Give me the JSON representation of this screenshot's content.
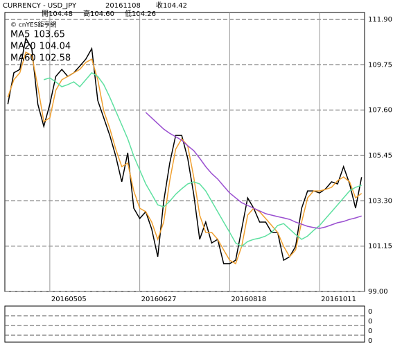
{
  "header": {
    "line1": [
      "CURRENCY - USD_JPY",
      "20161108",
      "收104.42"
    ],
    "line2": [
      "開104.48",
      "高104.60",
      "低104.26"
    ],
    "source": "© cnYES鉅亨網"
  },
  "chart_data": {
    "type": "line",
    "categories": [
      null,
      null,
      null,
      null,
      null,
      null,
      null,
      "20160505",
      null,
      null,
      null,
      null,
      null,
      null,
      null,
      null,
      null,
      null,
      null,
      null,
      null,
      null,
      "20160627",
      null,
      null,
      null,
      null,
      null,
      null,
      null,
      null,
      null,
      null,
      null,
      null,
      null,
      null,
      "20160818",
      null,
      null,
      null,
      null,
      null,
      null,
      null,
      null,
      null,
      null,
      null,
      null,
      null,
      null,
      "20161011",
      null,
      null,
      null,
      null,
      null,
      null,
      null
    ],
    "ylim": [
      99,
      112.23
    ],
    "yticks": [
      {
        "value": 99,
        "label": "99.00"
      },
      101.15,
      {
        "value": 103.3,
        "label": "103.30"
      },
      105.45,
      {
        "value": 107.6,
        "label": "107.60"
      },
      109.75,
      {
        "value": 111.9,
        "label": "111.90"
      }
    ],
    "grid": true,
    "series": [
      {
        "color": "#000000",
        "values": [
          107.88,
          109.37,
          109.53,
          111.01,
          110.52,
          107.88,
          106.83,
          107.88,
          109.2,
          109.53,
          109.2,
          109.37,
          109.69,
          110.02,
          110.52,
          108.05,
          107.23,
          106.4,
          105.42,
          104.2,
          105.58,
          102.95,
          102.46,
          102.78,
          101.96,
          100.65,
          103.28,
          105.09,
          106.4,
          106.4,
          105.32,
          103.61,
          101.47,
          102.29,
          101.3,
          101.47,
          100.32,
          100.32,
          100.48,
          101.96,
          103.44,
          102.95,
          102.29,
          102.29,
          101.8,
          101.8,
          100.48,
          100.65,
          101.14,
          102.95,
          103.77,
          103.77,
          103.67,
          103.87,
          104.2,
          104.1,
          104.92,
          104.1,
          102.95,
          104.42
        ]
      },
      {
        "name": "MA5",
        "last": 103.65,
        "color": "#f0a030",
        "values": [
          108.21,
          109.04,
          109.37,
          110.35,
          110.19,
          108.71,
          107.06,
          107.23,
          108.54,
          109.04,
          109.2,
          109.37,
          109.53,
          109.86,
          110.02,
          109.04,
          107.56,
          106.73,
          105.75,
          104.92,
          105.09,
          103.77,
          102.95,
          102.78,
          102.29,
          101.47,
          102.29,
          104.26,
          105.75,
          106.24,
          105.91,
          104.43,
          102.62,
          101.8,
          101.8,
          101.47,
          100.97,
          100.48,
          100.32,
          101.14,
          102.62,
          102.95,
          102.78,
          102.46,
          102.13,
          101.8,
          101.14,
          100.65,
          100.97,
          102.29,
          103.44,
          103.77,
          103.77,
          103.84,
          103.94,
          104.26,
          104.43,
          104.2,
          103.44,
          103.65
        ]
      },
      {
        "name": "MA20",
        "last": 104.04,
        "color": "#5ee0a0",
        "values": [
          null,
          null,
          null,
          null,
          null,
          null,
          109.04,
          109.13,
          108.94,
          108.71,
          108.81,
          108.94,
          108.71,
          109.04,
          109.37,
          109.2,
          108.81,
          108.21,
          107.56,
          106.9,
          106.24,
          105.42,
          104.76,
          104.1,
          103.61,
          103.11,
          103.01,
          103.28,
          103.61,
          103.87,
          104.1,
          104.2,
          104.1,
          103.77,
          103.28,
          102.78,
          102.29,
          101.8,
          101.3,
          101.14,
          101.37,
          101.47,
          101.53,
          101.63,
          101.8,
          102.13,
          102.22,
          101.96,
          101.7,
          101.47,
          101.63,
          101.9,
          102.13,
          102.46,
          102.78,
          103.11,
          103.44,
          103.77,
          103.94,
          104.04
        ]
      },
      {
        "name": "MA60",
        "last": 102.58,
        "color": "#9a4fd0",
        "values": [
          null,
          null,
          null,
          null,
          null,
          null,
          null,
          null,
          null,
          null,
          null,
          null,
          null,
          null,
          null,
          null,
          null,
          null,
          null,
          null,
          null,
          null,
          null,
          107.49,
          107.23,
          106.96,
          106.7,
          106.5,
          106.34,
          106.17,
          105.91,
          105.68,
          105.32,
          104.92,
          104.59,
          104.33,
          104,
          103.67,
          103.44,
          103.21,
          103.08,
          102.95,
          102.82,
          102.69,
          102.62,
          102.55,
          102.49,
          102.42,
          102.29,
          102.19,
          102.09,
          102.03,
          101.99,
          102.06,
          102.16,
          102.26,
          102.32,
          102.42,
          102.49,
          102.58
        ]
      }
    ]
  },
  "sub_panel": {
    "labels": [
      "0",
      "0",
      "0",
      "0"
    ]
  }
}
